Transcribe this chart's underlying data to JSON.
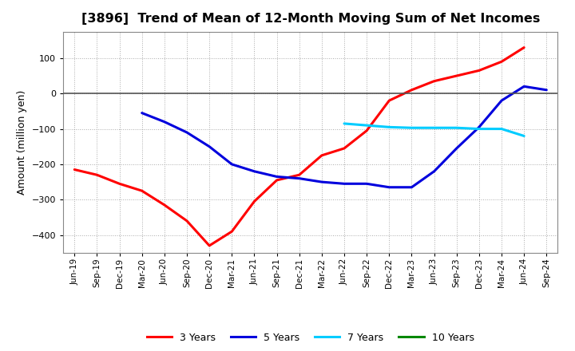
{
  "title": "[3896]  Trend of Mean of 12-Month Moving Sum of Net Incomes",
  "ylabel": "Amount (million yen)",
  "background_color": "#ffffff",
  "grid_color": "#aaaaaa",
  "ylim": [
    -450,
    175
  ],
  "yticks": [
    -400,
    -300,
    -200,
    -100,
    0,
    100
  ],
  "x_labels": [
    "Jun-19",
    "Sep-19",
    "Dec-19",
    "Mar-20",
    "Jun-20",
    "Sep-20",
    "Dec-20",
    "Mar-21",
    "Jun-21",
    "Sep-21",
    "Dec-21",
    "Mar-22",
    "Jun-22",
    "Sep-22",
    "Dec-22",
    "Mar-23",
    "Jun-23",
    "Sep-23",
    "Dec-23",
    "Mar-24",
    "Jun-24",
    "Sep-24"
  ],
  "series": {
    "3 Years": {
      "color": "#ff0000",
      "values": [
        -215,
        -230,
        -255,
        -275,
        -315,
        -360,
        -430,
        -390,
        -305,
        -245,
        -230,
        -175,
        -155,
        -105,
        -20,
        10,
        35,
        50,
        65,
        90,
        130,
        null
      ]
    },
    "5 Years": {
      "color": "#0000dd",
      "values": [
        null,
        null,
        null,
        -55,
        -80,
        -110,
        -150,
        -200,
        -220,
        -235,
        -240,
        -250,
        -255,
        -255,
        -265,
        -265,
        -220,
        -155,
        -95,
        -20,
        20,
        10
      ]
    },
    "7 Years": {
      "color": "#00ccff",
      "values": [
        null,
        null,
        null,
        null,
        null,
        null,
        null,
        null,
        null,
        null,
        null,
        null,
        -85,
        -90,
        -95,
        -97,
        -97,
        -97,
        -100,
        -100,
        -120,
        null
      ]
    },
    "10 Years": {
      "color": "#008800",
      "values": [
        null,
        null,
        null,
        null,
        null,
        null,
        null,
        null,
        null,
        null,
        null,
        null,
        null,
        null,
        null,
        null,
        null,
        null,
        null,
        null,
        null,
        null
      ]
    }
  },
  "legend_order": [
    "3 Years",
    "5 Years",
    "7 Years",
    "10 Years"
  ]
}
